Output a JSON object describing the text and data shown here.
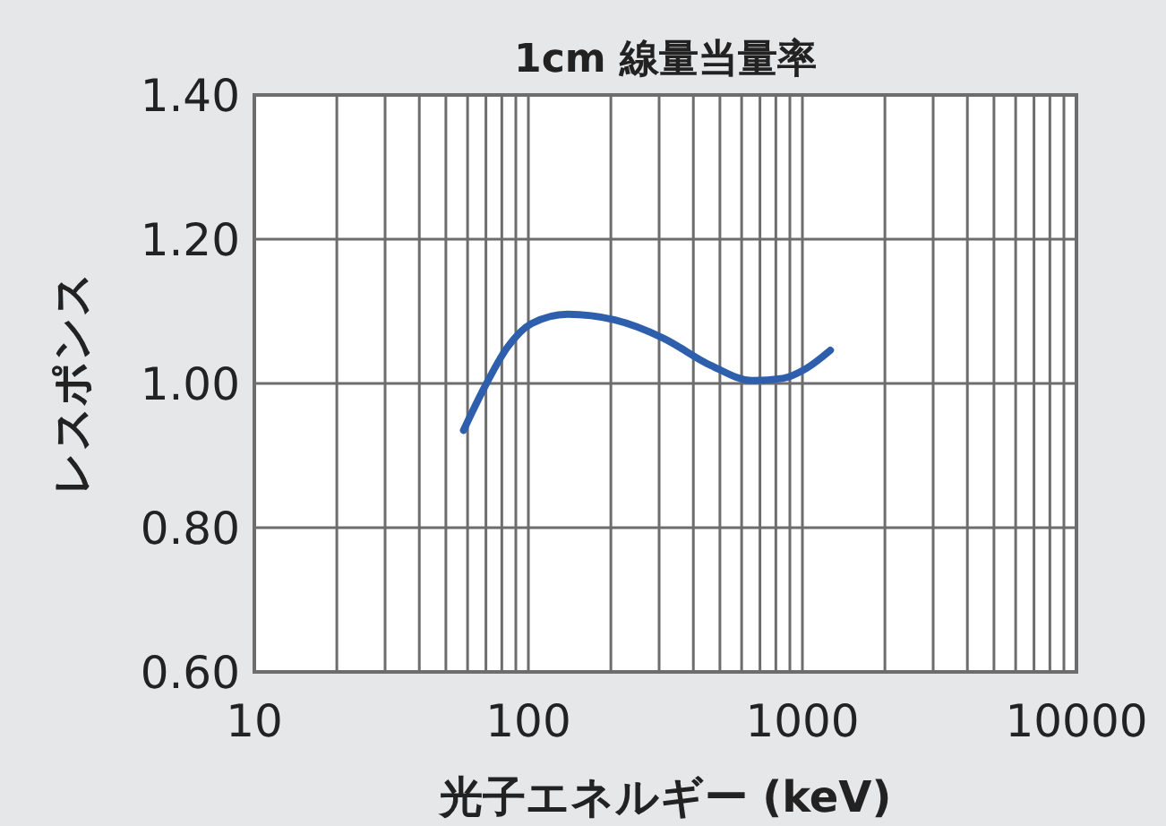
{
  "chart_data": {
    "type": "line",
    "title": "1cm 線量当量率",
    "xlabel": "光子エネルギー (keV)",
    "ylabel": "レスポンス",
    "log": "x",
    "grid": true,
    "xlim": [
      10,
      10000
    ],
    "xticks": [
      10,
      100,
      1000,
      10000
    ],
    "ylim": [
      0.6,
      1.4
    ],
    "yticks": [
      {
        "value": 0.6,
        "label": "0.60"
      },
      {
        "value": 0.8,
        "label": "0.80"
      },
      {
        "value": 1.0,
        "label": "1.00"
      },
      {
        "value": 1.2,
        "label": "1.20"
      },
      {
        "value": 1.4,
        "label": "1.40"
      }
    ],
    "series": [
      {
        "color": "#2e5fac",
        "x": [
          58,
          68.6,
          83.8,
          102.6,
          139,
          207,
          310,
          463,
          659,
          847,
          1035,
          1265
        ],
        "values": [
          0.935,
          0.992,
          1.05,
          1.083,
          1.096,
          1.088,
          1.063,
          1.025,
          1.004,
          1.007,
          1.021,
          1.046
        ]
      }
    ]
  }
}
